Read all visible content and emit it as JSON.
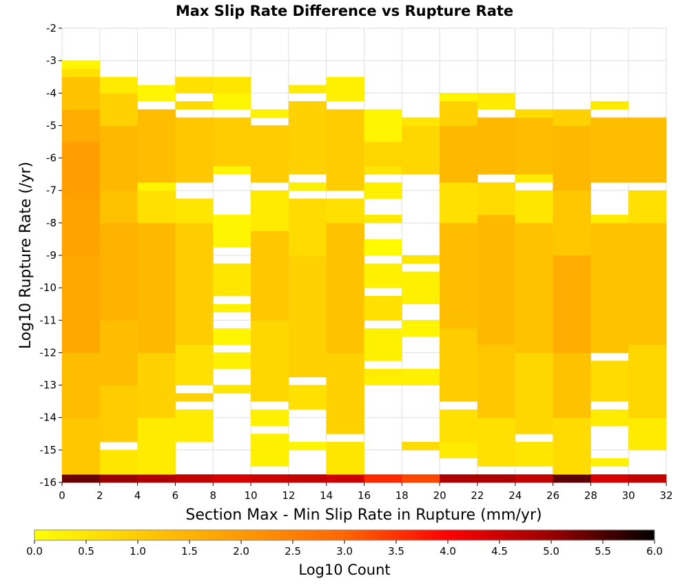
{
  "chart_data": {
    "type": "heatmap",
    "title": "Max Slip Rate Difference vs Rupture Rate",
    "xlabel": "Section Max - Min Slip Rate in Rupture (mm/yr)",
    "ylabel": "Log10 Rupture Rate (/yr)",
    "xlim": [
      0,
      32
    ],
    "ylim": [
      -16,
      -2
    ],
    "x_ticks": [
      "0",
      "2",
      "4",
      "6",
      "8",
      "10",
      "12",
      "14",
      "16",
      "18",
      "20",
      "22",
      "24",
      "26",
      "28",
      "30",
      "32"
    ],
    "y_ticks": [
      "-2",
      "-3",
      "-4",
      "-5",
      "-6",
      "-7",
      "-8",
      "-9",
      "-10",
      "-11",
      "-12",
      "-13",
      "-14",
      "-15",
      "-16"
    ],
    "x_bin_width": 2,
    "y_bin_height": 0.25,
    "colorbar": {
      "label": "Log10 Count",
      "range": [
        0,
        6
      ],
      "ticks": [
        "0.0",
        "0.5",
        "1.0",
        "1.5",
        "2.0",
        "2.5",
        "3.0",
        "3.5",
        "4.0",
        "4.5",
        "5.0",
        "5.5",
        "6.0"
      ],
      "colors": [
        "#ffff00",
        "#ffcc00",
        "#ff9900",
        "#ff6600",
        "#ff0000",
        "#990000",
        "#000000"
      ]
    },
    "series": [
      {
        "x_start": 0,
        "ranges": [
          [
            -16,
            -15.75,
            5.3
          ],
          [
            -15.75,
            -14,
            1.1
          ],
          [
            -14,
            -12,
            1.3
          ],
          [
            -12,
            -9,
            1.7
          ],
          [
            -9,
            -7.25,
            1.8
          ],
          [
            -7.25,
            -5.5,
            1.9
          ],
          [
            -5.5,
            -4.5,
            1.6
          ],
          [
            -4.5,
            -3.5,
            1.2
          ],
          [
            -3.5,
            -3.25,
            0.6
          ],
          [
            -3.25,
            -3,
            0.2
          ]
        ]
      },
      {
        "x_start": 2,
        "ranges": [
          [
            -16,
            -15.75,
            5.0
          ],
          [
            -15.75,
            -15,
            0.5
          ],
          [
            -14.75,
            -13,
            1.0
          ],
          [
            -13,
            -11,
            1.3
          ],
          [
            -11,
            -8,
            1.5
          ],
          [
            -8,
            -7,
            1.2
          ],
          [
            -7,
            -5,
            1.4
          ],
          [
            -5,
            -4,
            0.9
          ],
          [
            -4,
            -3.5,
            0.4
          ]
        ]
      },
      {
        "x_start": 4,
        "ranges": [
          [
            -16,
            -15.75,
            4.8
          ],
          [
            -15.75,
            -14,
            0.4
          ],
          [
            -14,
            -12,
            0.9
          ],
          [
            -12,
            -8,
            1.4
          ],
          [
            -8,
            -7,
            0.6
          ],
          [
            -7,
            -6.75,
            0.2
          ],
          [
            -6.75,
            -4.5,
            1.3
          ],
          [
            -4.25,
            -3.75,
            0.2
          ]
        ]
      },
      {
        "x_start": 6,
        "ranges": [
          [
            -16,
            -15.75,
            4.6
          ],
          [
            -14.75,
            -13.75,
            0.4
          ],
          [
            -13.5,
            -13.25,
            0.9
          ],
          [
            -13,
            -11.75,
            0.6
          ],
          [
            -11.75,
            -8,
            1.0
          ],
          [
            -8,
            -7.25,
            0.5
          ],
          [
            -6.75,
            -4.75,
            1.1
          ],
          [
            -4.5,
            -4.25,
            0.7
          ],
          [
            -4,
            -3.5,
            0.6
          ]
        ]
      },
      {
        "x_start": 8,
        "ranges": [
          [
            -16,
            -15.75,
            4.4
          ],
          [
            -13.25,
            -13,
            0.5
          ],
          [
            -12.5,
            -12,
            0.3
          ],
          [
            -11.75,
            -11.25,
            0.2
          ],
          [
            -10.75,
            -10.5,
            0.3
          ],
          [
            -10.25,
            -9.25,
            0.5
          ],
          [
            -8.75,
            -7.75,
            0.2
          ],
          [
            -6.5,
            -6.25,
            0.2
          ],
          [
            -6.25,
            -4.75,
            1.0
          ],
          [
            -4.5,
            -4,
            0.2
          ],
          [
            -4,
            -3.5,
            0.5
          ]
        ]
      },
      {
        "x_start": 10,
        "ranges": [
          [
            -16,
            -15.75,
            4.5
          ],
          [
            -15.5,
            -14.5,
            0.3
          ],
          [
            -14.25,
            -13.75,
            0.3
          ],
          [
            -13.5,
            -11,
            0.8
          ],
          [
            -11,
            -8.25,
            1.1
          ],
          [
            -8.25,
            -7,
            0.4
          ],
          [
            -6.75,
            -5,
            1.0
          ],
          [
            -4.75,
            -4.5,
            0.3
          ]
        ]
      },
      {
        "x_start": 12,
        "ranges": [
          [
            -16,
            -15.75,
            4.6
          ],
          [
            -15,
            -14.75,
            0.2
          ],
          [
            -13.75,
            -13,
            0.6
          ],
          [
            -12.75,
            -9,
            0.9
          ],
          [
            -9,
            -7.25,
            0.7
          ],
          [
            -7,
            -6.75,
            0.3
          ],
          [
            -6.5,
            -4.25,
            0.9
          ],
          [
            -4,
            -3.75,
            0.4
          ]
        ]
      },
      {
        "x_start": 14,
        "ranges": [
          [
            -16,
            -15.75,
            4.5
          ],
          [
            -15.75,
            -14.75,
            0.5
          ],
          [
            -14.5,
            -12,
            0.9
          ],
          [
            -12,
            -8,
            1.2
          ],
          [
            -8,
            -7.25,
            0.6
          ],
          [
            -7,
            -4.5,
            1.0
          ],
          [
            -4.25,
            -3.5,
            0.3
          ]
        ]
      },
      {
        "x_start": 16,
        "ranges": [
          [
            -16,
            -15.75,
            3.6
          ],
          [
            -13,
            -12.75,
            0.3
          ],
          [
            -12.75,
            -12.5,
            0.4
          ],
          [
            -12.25,
            -11.25,
            0.3
          ],
          [
            -11,
            -10.25,
            0.6
          ],
          [
            -10,
            -9.25,
            0.3
          ],
          [
            -9,
            -8.5,
            0.1
          ],
          [
            -8,
            -7.75,
            0.4
          ],
          [
            -7.25,
            -6.75,
            0.3
          ],
          [
            -6.5,
            -6.25,
            0.5
          ],
          [
            -6.25,
            -5.5,
            0.8
          ],
          [
            -5.5,
            -4.5,
            0.2
          ]
        ]
      },
      {
        "x_start": 18,
        "ranges": [
          [
            -16,
            -15.75,
            3.3
          ],
          [
            -15,
            -14.75,
            0.7
          ],
          [
            -13,
            -12.5,
            0.3
          ],
          [
            -11.5,
            -11,
            0.2
          ],
          [
            -10.5,
            -9.5,
            0.3
          ],
          [
            -9.25,
            -9,
            0.5
          ],
          [
            -6.5,
            -5,
            0.8
          ],
          [
            -5,
            -4.75,
            0.5
          ]
        ]
      },
      {
        "x_start": 20,
        "ranges": [
          [
            -16,
            -15.75,
            4.8
          ],
          [
            -15.25,
            -14.75,
            0.4
          ],
          [
            -14.75,
            -13.75,
            0.6
          ],
          [
            -13.5,
            -11.25,
            1.0
          ],
          [
            -11.25,
            -8,
            1.3
          ],
          [
            -8,
            -6.75,
            0.6
          ],
          [
            -6.75,
            -5,
            1.4
          ],
          [
            -5,
            -4.25,
            0.9
          ],
          [
            -4.25,
            -4,
            0.2
          ]
        ]
      },
      {
        "x_start": 22,
        "ranges": [
          [
            -16,
            -15.75,
            4.8
          ],
          [
            -15.5,
            -14,
            0.6
          ],
          [
            -14,
            -11.75,
            1.1
          ],
          [
            -11.75,
            -7.75,
            1.4
          ],
          [
            -7.75,
            -6.75,
            0.7
          ],
          [
            -6.5,
            -4.75,
            1.4
          ],
          [
            -4.5,
            -4,
            0.4
          ]
        ]
      },
      {
        "x_start": 24,
        "ranges": [
          [
            -16,
            -15.75,
            4.6
          ],
          [
            -15.5,
            -14.75,
            0.5
          ],
          [
            -14.5,
            -12,
            0.8
          ],
          [
            -12,
            -8,
            1.2
          ],
          [
            -8,
            -7,
            0.5
          ],
          [
            -6.75,
            -6.5,
            0.4
          ],
          [
            -6.5,
            -4.75,
            1.3
          ],
          [
            -4.75,
            -4.5,
            0.7
          ]
        ]
      },
      {
        "x_start": 26,
        "ranges": [
          [
            -16,
            -15.75,
            5.4
          ],
          [
            -15.75,
            -14,
            0.7
          ],
          [
            -14,
            -12,
            1.2
          ],
          [
            -12,
            -9,
            1.6
          ],
          [
            -9,
            -7,
            1.1
          ],
          [
            -7,
            -5,
            1.4
          ],
          [
            -5,
            -4.5,
            0.9
          ]
        ]
      },
      {
        "x_start": 28,
        "ranges": [
          [
            -16,
            -15.75,
            4.4
          ],
          [
            -15.5,
            -15.25,
            0.3
          ],
          [
            -14.25,
            -13.75,
            0.4
          ],
          [
            -13.5,
            -12.25,
            0.7
          ],
          [
            -12,
            -8,
            1.2
          ],
          [
            -8,
            -7.75,
            0.4
          ],
          [
            -6.75,
            -4.75,
            1.3
          ],
          [
            -4.5,
            -4.25,
            0.4
          ]
        ]
      },
      {
        "x_start": 30,
        "ranges": [
          [
            -16,
            -15.75,
            4.6
          ],
          [
            -15,
            -14,
            0.4
          ],
          [
            -14,
            -11.75,
            0.8
          ],
          [
            -11.75,
            -8,
            1.2
          ],
          [
            -8,
            -7,
            0.6
          ],
          [
            -6.75,
            -4.75,
            1.3
          ]
        ]
      }
    ]
  }
}
